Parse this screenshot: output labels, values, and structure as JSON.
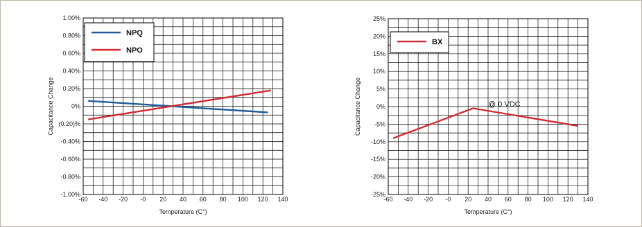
{
  "colors": {
    "frame": "#b9b6a6",
    "grid": "#000000",
    "plot_bg": "#ffffff"
  },
  "chart_data": [
    {
      "type": "line",
      "title": "",
      "xlabel": "Temperature (C°)",
      "ylabel": "Capacitance Change",
      "xlim": [
        -60,
        140
      ],
      "ylim": [
        -1.0,
        1.0
      ],
      "x_ticks": [
        -60,
        -40,
        -20,
        0,
        20,
        40,
        60,
        80,
        100,
        120,
        140
      ],
      "x_tick_labels": [
        "-60",
        "-40",
        "-20",
        "-0",
        "20",
        "40",
        "60",
        "80",
        "100",
        "120",
        "140"
      ],
      "y_ticks": [
        1.0,
        0.8,
        0.6,
        0.4,
        0.2,
        0.0,
        -0.2,
        -0.4,
        -0.6,
        -0.8,
        -1.0
      ],
      "y_tick_labels": [
        "1.00%",
        "0.80%",
        "0.60%",
        "0.40%",
        "0.20%",
        "0%",
        "(0.20)%",
        "-0.40%",
        "-0.60%",
        "-0.80%",
        "-1.00%"
      ],
      "grid": true,
      "grid_minor_x": 10,
      "grid_minor_y": 0.1,
      "legend_position": "top-left",
      "series": [
        {
          "name": "NPQ",
          "color": "#1f5b97",
          "x": [
            -55,
            125
          ],
          "y": [
            0.06,
            -0.07
          ]
        },
        {
          "name": "NPO",
          "color": "#d22c36",
          "x": [
            -55,
            128
          ],
          "y": [
            -0.15,
            0.18
          ]
        }
      ],
      "annotations": []
    },
    {
      "type": "line",
      "title": "",
      "xlabel": "Temperature (C°)",
      "ylabel": "Capacitance Change",
      "xlim": [
        -60,
        140
      ],
      "ylim": [
        -25,
        25
      ],
      "x_ticks": [
        -60,
        -40,
        -20,
        0,
        20,
        40,
        60,
        80,
        100,
        120,
        140
      ],
      "x_tick_labels": [
        "-60",
        "-40",
        "-20",
        "-0",
        "20",
        "40",
        "60",
        "80",
        "100",
        "120",
        "140"
      ],
      "y_ticks": [
        25,
        20,
        15,
        10,
        5,
        0,
        -5,
        -10,
        -15,
        -20,
        -25
      ],
      "y_tick_labels": [
        "25%",
        "20%",
        "15%",
        "10%",
        "5%",
        "0%",
        "-5%",
        "-10%",
        "-15%",
        "-20%",
        "-25%"
      ],
      "grid": true,
      "grid_minor_x": 10,
      "grid_minor_y": 2.5,
      "legend_position": "top-left",
      "series": [
        {
          "name": "BX",
          "color": "#d22c36",
          "x": [
            -55,
            25,
            130
          ],
          "y": [
            -9.0,
            -0.5,
            -5.5
          ]
        }
      ],
      "annotations": [
        {
          "text": "@ 0 VDC",
          "x": 40,
          "y": 0
        }
      ]
    }
  ]
}
